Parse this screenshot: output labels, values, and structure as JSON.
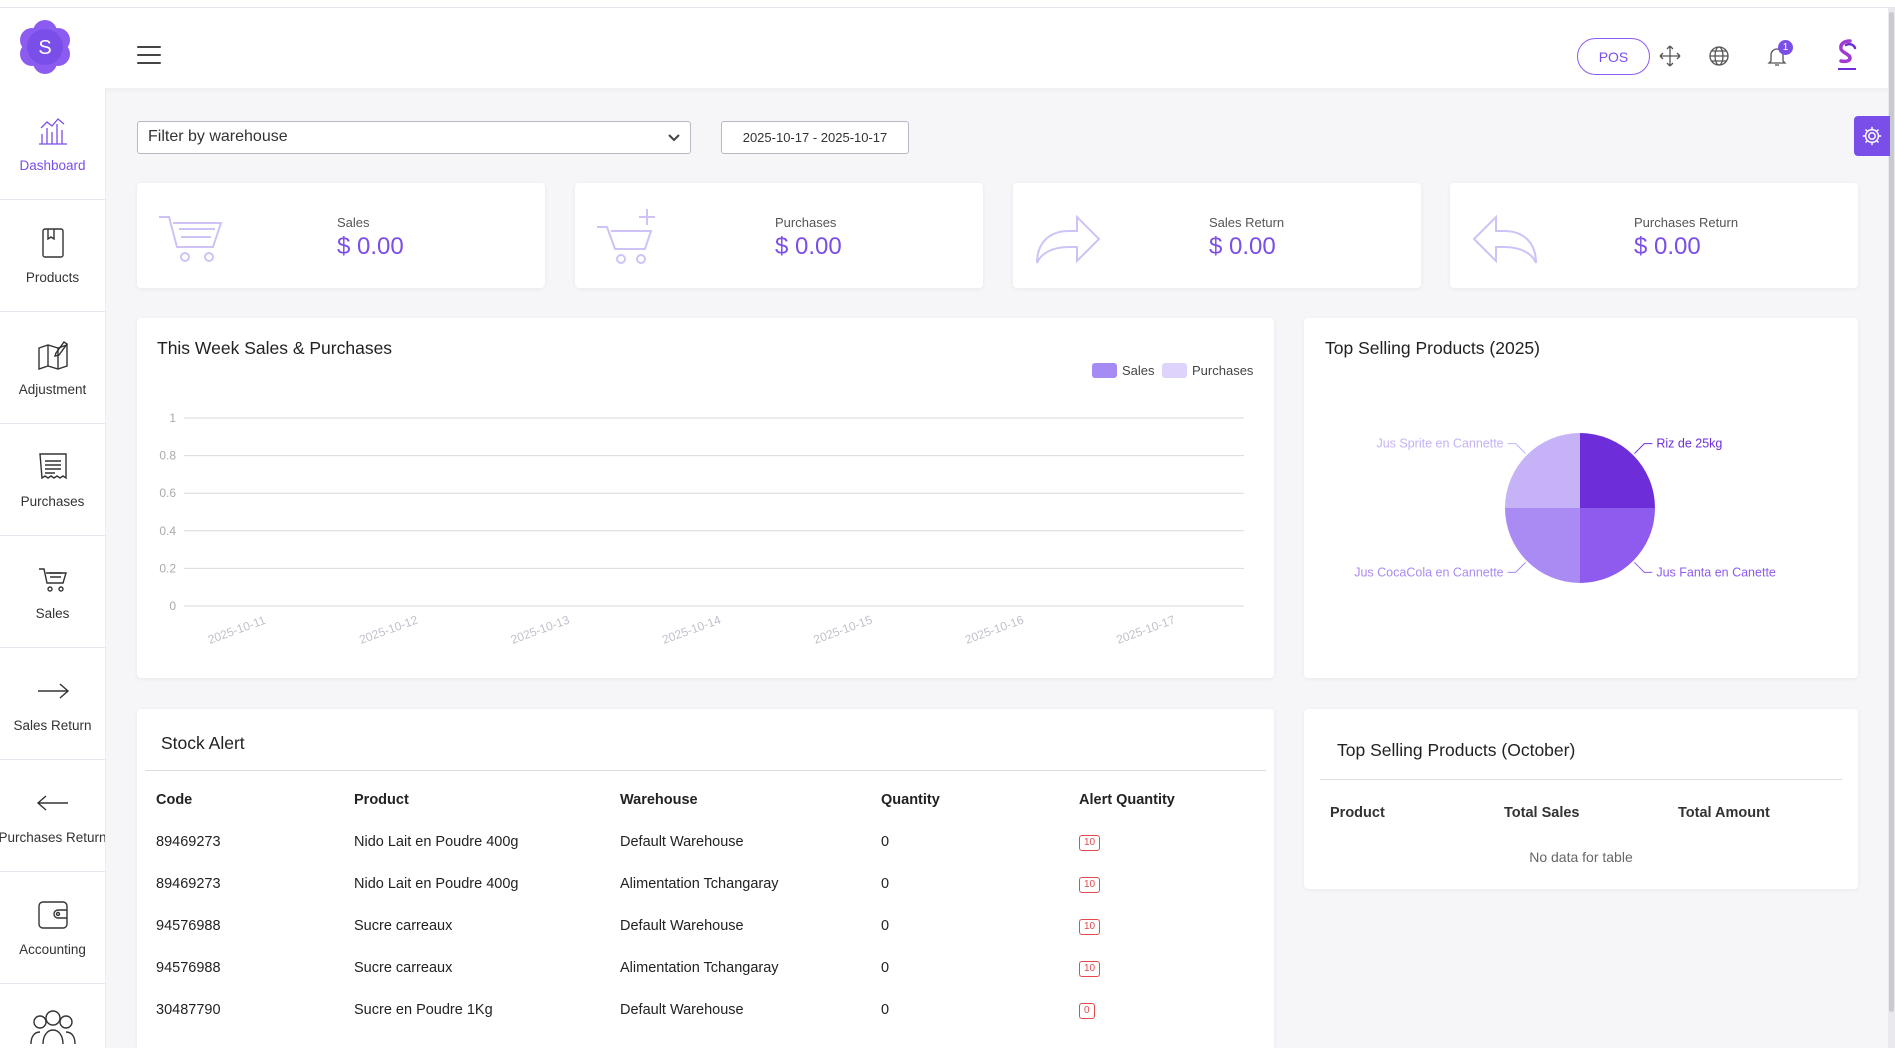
{
  "header": {
    "logo_letter": "S",
    "pos_label": "POS",
    "notification_count": "1",
    "accent": "#7a4ee8"
  },
  "sidebar": {
    "items": [
      {
        "label": "Dashboard",
        "icon": "chart-icon",
        "active": true
      },
      {
        "label": "Products",
        "icon": "book-icon"
      },
      {
        "label": "Adjustment",
        "icon": "map-edit-icon"
      },
      {
        "label": "Purchases",
        "icon": "receipt-icon"
      },
      {
        "label": "Sales",
        "icon": "cart-icon"
      },
      {
        "label": "Sales Return",
        "icon": "arrow-right-icon"
      },
      {
        "label": "Purchases Return",
        "icon": "arrow-left-icon"
      },
      {
        "label": "Accounting",
        "icon": "wallet-icon"
      },
      {
        "label": "",
        "icon": "users-icon"
      }
    ]
  },
  "filters": {
    "warehouse_placeholder": "Filter by warehouse",
    "date_range": "2025-10-17 - 2025-10-17"
  },
  "stats": [
    {
      "label": "Sales",
      "value": "$ 0.00",
      "icon": "cart-icon"
    },
    {
      "label": "Purchases",
      "value": "$ 0.00",
      "icon": "cart-plus-icon"
    },
    {
      "label": "Sales Return",
      "value": "$ 0.00",
      "icon": "redo-arrow-icon"
    },
    {
      "label": "Purchases Return",
      "value": "$ 0.00",
      "icon": "undo-arrow-icon"
    }
  ],
  "weekly": {
    "title": "This Week Sales & Purchases",
    "chart_data": {
      "type": "bar",
      "title": "This Week Sales & Purchases",
      "categories": [
        "2025-10-11",
        "2025-10-12",
        "2025-10-13",
        "2025-10-14",
        "2025-10-15",
        "2025-10-16",
        "2025-10-17"
      ],
      "series": [
        {
          "name": "Sales",
          "values": [
            0,
            0,
            0,
            0,
            0,
            0,
            0
          ],
          "color": "#a78bf5"
        },
        {
          "name": "Purchases",
          "values": [
            0,
            0,
            0,
            0,
            0,
            0,
            0
          ],
          "color": "#ddd3fb"
        }
      ],
      "yticks": [
        "1",
        "0.8",
        "0.6",
        "0.4",
        "0.2",
        "0"
      ],
      "ylim": [
        0,
        1
      ],
      "grid": true,
      "legend": "top-right"
    }
  },
  "top_year": {
    "title": "Top Selling Products (2025)",
    "chart_data": {
      "type": "pie",
      "slices": [
        {
          "label": "Riz de 25kg",
          "value": 25,
          "color": "#6d2ed9"
        },
        {
          "label": "Jus Fanta en Canette",
          "value": 25,
          "color": "#8f5bee"
        },
        {
          "label": "Jus CocaCola en Cannette",
          "value": 25,
          "color": "#a98bf3"
        },
        {
          "label": "Jus Sprite en Cannette",
          "value": 25,
          "color": "#c5b2f7"
        }
      ]
    }
  },
  "stock_alert": {
    "title": "Stock Alert",
    "columns": [
      "Code",
      "Product",
      "Warehouse",
      "Quantity",
      "Alert Quantity"
    ],
    "rows": [
      [
        "89469273",
        "Nido Lait en Poudre 400g",
        "Default Warehouse",
        "0",
        "10"
      ],
      [
        "89469273",
        "Nido Lait en Poudre 400g",
        "Alimentation Tchangaray",
        "0",
        "10"
      ],
      [
        "94576988",
        "Sucre carreaux",
        "Default Warehouse",
        "0",
        "10"
      ],
      [
        "94576988",
        "Sucre carreaux",
        "Alimentation Tchangaray",
        "0",
        "10"
      ],
      [
        "30487790",
        "Sucre en Poudre 1Kg",
        "Default Warehouse",
        "0",
        "0"
      ]
    ]
  },
  "top_month": {
    "title": "Top Selling Products (October)",
    "columns": [
      "Product",
      "Total Sales",
      "Total Amount"
    ],
    "empty_text": "No data for table"
  }
}
